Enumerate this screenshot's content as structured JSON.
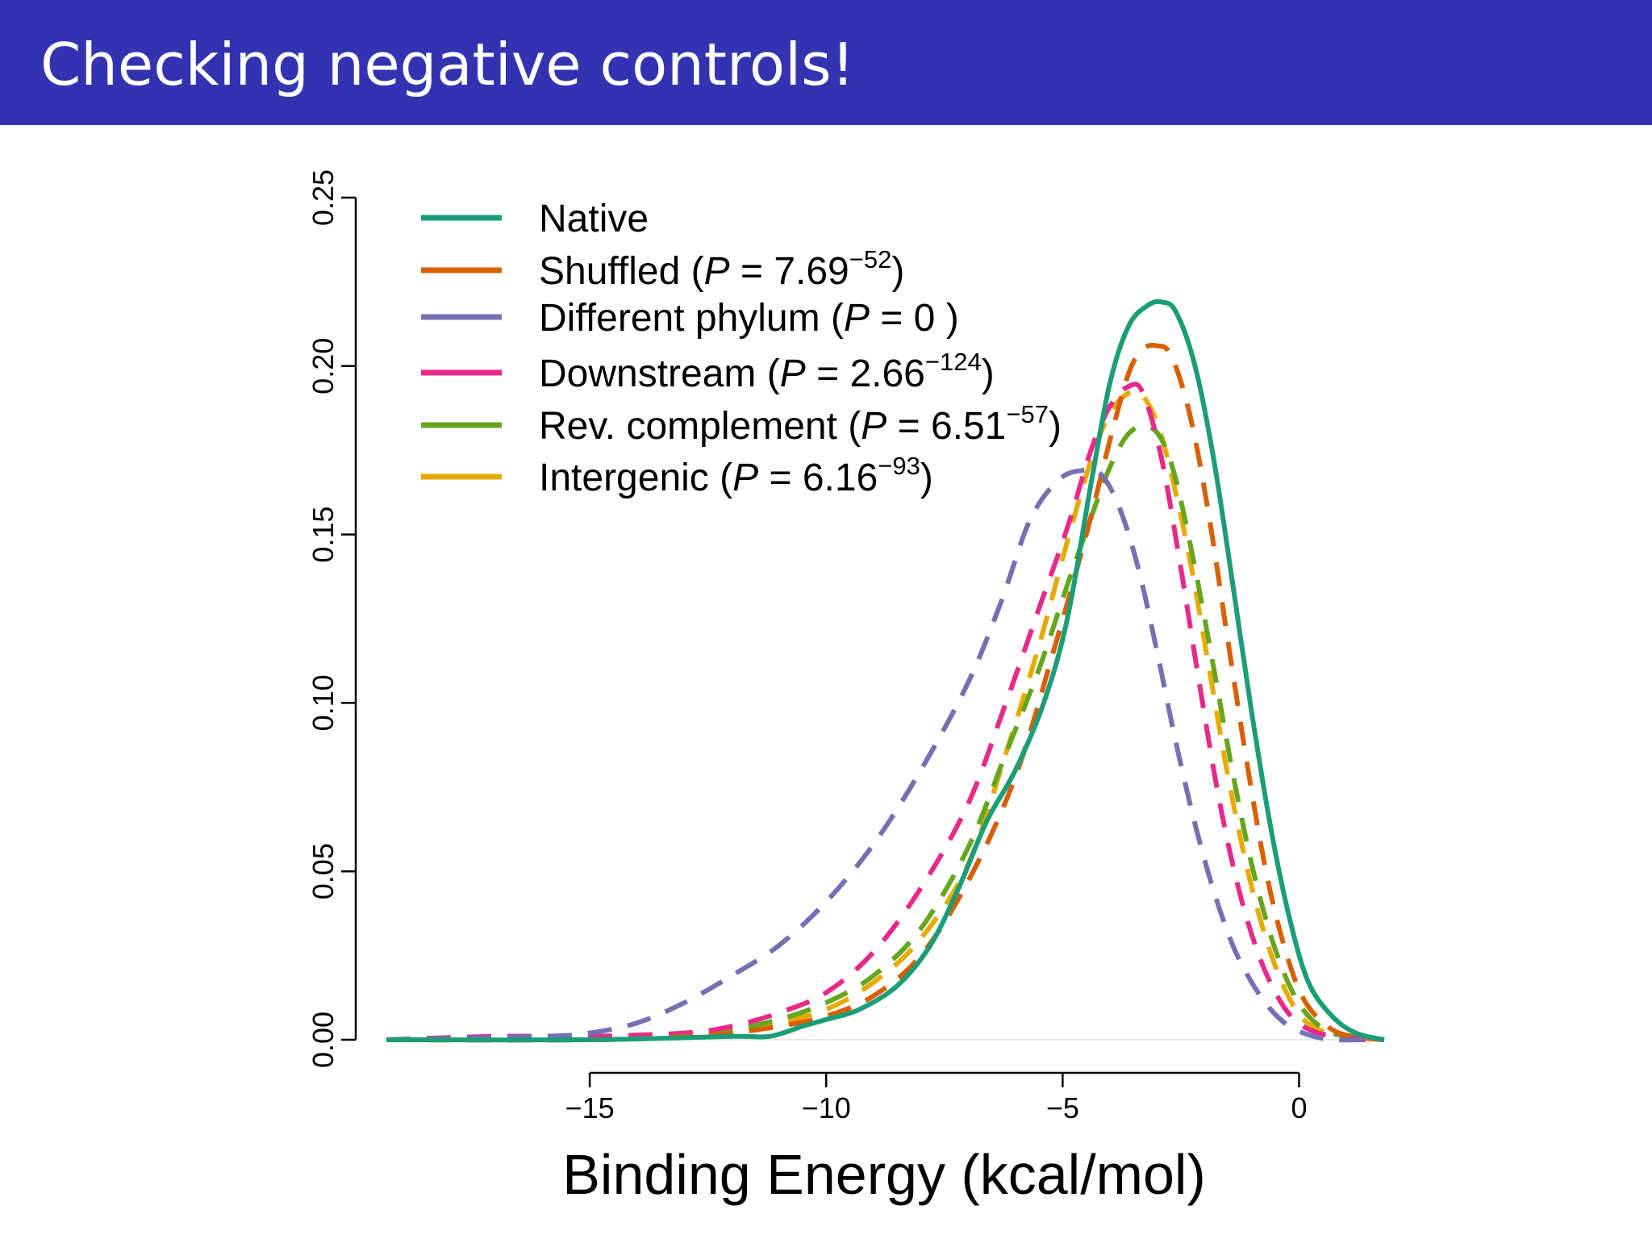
{
  "slide": {
    "title": "Checking negative controls!"
  },
  "colors": {
    "title_bar": "#3333b2",
    "title_text": "#ffffff"
  },
  "chart_data": {
    "type": "line",
    "title": "",
    "xlabel": "Binding Energy (kcal/mol)",
    "ylabel": "",
    "xlim": [
      -19.3,
      1.8
    ],
    "ylim": [
      0,
      0.25
    ],
    "xticks": [
      -15,
      -10,
      -5,
      0
    ],
    "xtick_labels": [
      "−15",
      "−10",
      "−5",
      "0"
    ],
    "yticks": [
      0,
      0.05,
      0.1,
      0.15,
      0.2,
      0.25
    ],
    "ytick_labels": [
      "0.00",
      "0.05",
      "0.10",
      "0.15",
      "0.20",
      "0.25"
    ],
    "grid": false,
    "legend_position": "top-left",
    "series": [
      {
        "name": "Native",
        "label_prefix": "Native",
        "p_base": "",
        "p_exp": "",
        "label_suffix": "",
        "color": "#1b9e77",
        "dash": "solid",
        "x": [
          -19.3,
          -15,
          -12,
          -11.2,
          -10.5,
          -10,
          -9.3,
          -8.5,
          -7.8,
          -7.2,
          -6.6,
          -6,
          -5.4,
          -4.9,
          -4.4,
          -4.0,
          -3.6,
          -3.2,
          -2.9,
          -2.6,
          -2.2,
          -1.8,
          -1.4,
          -1.0,
          -0.6,
          -0.2,
          0.2,
          0.7,
          1.2,
          1.8
        ],
        "y": [
          0,
          0,
          0.001,
          0.001,
          0.004,
          0.006,
          0.009,
          0.016,
          0.028,
          0.045,
          0.065,
          0.08,
          0.1,
          0.125,
          0.165,
          0.195,
          0.212,
          0.218,
          0.219,
          0.216,
          0.2,
          0.172,
          0.135,
          0.097,
          0.063,
          0.036,
          0.017,
          0.007,
          0.002,
          0
        ]
      },
      {
        "name": "Shuffled (P = 7.69−52)",
        "label_prefix": "Shuffled (",
        "p_base": "7.69",
        "p_exp": "−52",
        "label_suffix": ")",
        "color": "#d95f02",
        "dash": "dashed",
        "x": [
          -19.3,
          -15,
          -13,
          -12,
          -11,
          -10,
          -9,
          -8,
          -7,
          -6,
          -5.2,
          -4.5,
          -4,
          -3.6,
          -3.3,
          -3.0,
          -2.7,
          -2.3,
          -1.9,
          -1.5,
          -1.1,
          -0.7,
          -0.3,
          0.1,
          0.6,
          1.1,
          1.8
        ],
        "y": [
          0,
          0,
          0.001,
          0.002,
          0.004,
          0.007,
          0.013,
          0.025,
          0.047,
          0.078,
          0.115,
          0.15,
          0.178,
          0.198,
          0.205,
          0.206,
          0.203,
          0.185,
          0.155,
          0.118,
          0.082,
          0.05,
          0.027,
          0.012,
          0.004,
          0.001,
          0
        ]
      },
      {
        "name": "Different phylum (P = 0 )",
        "label_prefix": "Different phylum (",
        "p_base": "0",
        "p_exp": "",
        "label_suffix": " )",
        "color": "#7570b3",
        "dash": "dashed",
        "x": [
          -19.3,
          -16,
          -15,
          -14,
          -13,
          -12,
          -11,
          -10,
          -9,
          -8,
          -7,
          -6.3,
          -5.7,
          -5.1,
          -4.6,
          -4.2,
          -3.8,
          -3.4,
          -3.0,
          -2.6,
          -2.2,
          -1.8,
          -1.4,
          -1.0,
          -0.6,
          -0.2,
          0.3,
          0.8,
          1.4,
          1.8
        ],
        "y": [
          0,
          0.001,
          0.002,
          0.005,
          0.011,
          0.019,
          0.028,
          0.041,
          0.058,
          0.08,
          0.106,
          0.13,
          0.154,
          0.166,
          0.169,
          0.168,
          0.158,
          0.14,
          0.115,
          0.088,
          0.064,
          0.044,
          0.028,
          0.017,
          0.009,
          0.004,
          0.001,
          0,
          0,
          0
        ]
      },
      {
        "name": "Downstream (P = 2.66−124)",
        "label_prefix": "Downstream (",
        "p_base": "2.66",
        "p_exp": "−124",
        "label_suffix": ")",
        "color": "#e7298a",
        "dash": "dashed",
        "x": [
          -19.3,
          -17,
          -15,
          -13,
          -12,
          -11,
          -10,
          -9,
          -8,
          -7,
          -6.2,
          -5.5,
          -4.9,
          -4.4,
          -4.0,
          -3.6,
          -3.3,
          -2.9,
          -2.5,
          -2.1,
          -1.7,
          -1.3,
          -0.9,
          -0.5,
          -0.1,
          0.4,
          0.9,
          1.4,
          1.8
        ],
        "y": [
          0,
          0.001,
          0.001,
          0.002,
          0.004,
          0.008,
          0.014,
          0.026,
          0.045,
          0.07,
          0.1,
          0.128,
          0.152,
          0.175,
          0.188,
          0.194,
          0.192,
          0.172,
          0.14,
          0.105,
          0.072,
          0.046,
          0.027,
          0.014,
          0.006,
          0.002,
          0.001,
          0,
          0
        ]
      },
      {
        "name": "Rev. complement (P = 6.51−57)",
        "label_prefix": "Rev. complement (",
        "p_base": "6.51",
        "p_exp": "−57",
        "label_suffix": ")",
        "color": "#66a61e",
        "dash": "dashed",
        "x": [
          -19.3,
          -15,
          -13,
          -12,
          -11,
          -10,
          -9,
          -8,
          -7,
          -6.2,
          -5.5,
          -4.9,
          -4.4,
          -4.0,
          -3.6,
          -3.2,
          -2.9,
          -2.6,
          -2.2,
          -1.8,
          -1.4,
          -1.0,
          -0.6,
          -0.2,
          0.2,
          0.7,
          1.2,
          1.8
        ],
        "y": [
          0,
          0,
          0.001,
          0.003,
          0.006,
          0.011,
          0.019,
          0.033,
          0.057,
          0.085,
          0.11,
          0.135,
          0.155,
          0.17,
          0.18,
          0.182,
          0.178,
          0.166,
          0.14,
          0.11,
          0.079,
          0.052,
          0.031,
          0.016,
          0.007,
          0.002,
          0.001,
          0
        ]
      },
      {
        "name": "Intergenic (P = 6.16−93)",
        "label_prefix": "Intergenic (",
        "p_base": "6.16",
        "p_exp": "−93",
        "label_suffix": ")",
        "color": "#e6ab02",
        "dash": "dashed",
        "x": [
          -19.3,
          -15,
          -13,
          -12,
          -11,
          -10,
          -9,
          -8,
          -7,
          -6.2,
          -5.5,
          -4.9,
          -4.4,
          -4.0,
          -3.6,
          -3.3,
          -3.0,
          -2.7,
          -2.3,
          -1.9,
          -1.5,
          -1.1,
          -0.7,
          -0.3,
          0.1,
          0.6,
          1.1,
          1.8
        ],
        "y": [
          0,
          0,
          0.001,
          0.002,
          0.005,
          0.009,
          0.017,
          0.03,
          0.052,
          0.085,
          0.117,
          0.148,
          0.172,
          0.186,
          0.192,
          0.191,
          0.183,
          0.168,
          0.142,
          0.11,
          0.078,
          0.051,
          0.03,
          0.015,
          0.006,
          0.002,
          0.001,
          0
        ]
      }
    ]
  }
}
